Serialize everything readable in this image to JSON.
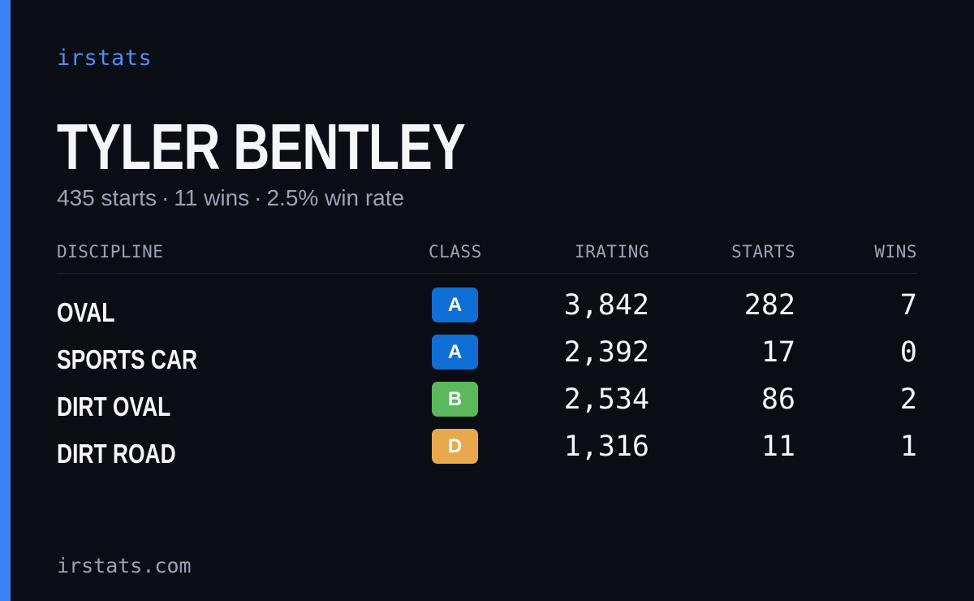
{
  "brand": "irstats",
  "player": {
    "name": "TYLER BENTLEY",
    "starts": "435 starts",
    "wins": "11 wins",
    "win_rate": "2.5% win rate",
    "separator": "·"
  },
  "table": {
    "headers": {
      "discipline": "DISCIPLINE",
      "class": "CLASS",
      "irating": "IRATING",
      "starts": "STARTS",
      "wins": "WINS"
    },
    "rows": [
      {
        "discipline": "OVAL",
        "class": "A",
        "class_color": "#0f6fd6",
        "irating": "3,842",
        "starts": "282",
        "wins": "7"
      },
      {
        "discipline": "SPORTS CAR",
        "class": "A",
        "class_color": "#0f6fd6",
        "irating": "2,392",
        "starts": "17",
        "wins": "0"
      },
      {
        "discipline": "DIRT OVAL",
        "class": "B",
        "class_color": "#5cb85c",
        "irating": "2,534",
        "starts": "86",
        "wins": "2"
      },
      {
        "discipline": "DIRT ROAD",
        "class": "D",
        "class_color": "#e8a84c",
        "irating": "1,316",
        "starts": "11",
        "wins": "1"
      }
    ]
  },
  "footer": "irstats.com",
  "colors": {
    "background": "#0a0d14",
    "accent": "#3b82f6",
    "brand_text": "#4f8ff7",
    "muted_text": "#9aa3b2",
    "primary_text": "#f4f6fa"
  }
}
